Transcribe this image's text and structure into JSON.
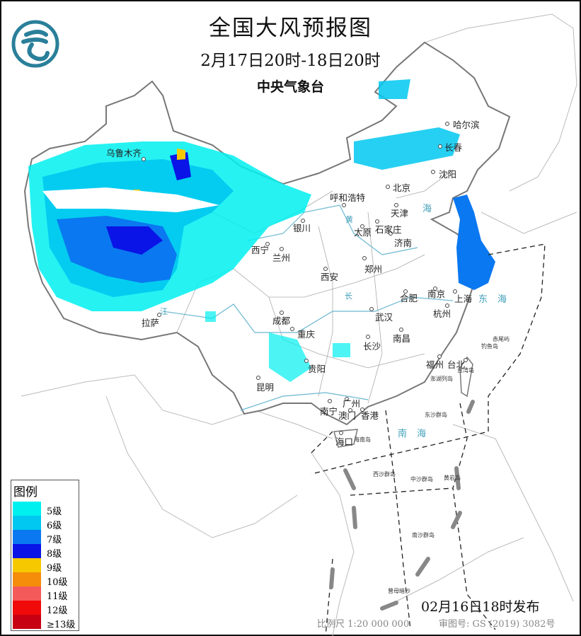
{
  "header": {
    "title": "全国大风预报图",
    "period": "2月17日20时-18日20时",
    "issuer": "中央气象台",
    "logo_icon": "cma-logo-icon"
  },
  "cities": {
    "urumqi": "乌鲁木齐",
    "harbin": "哈尔滨",
    "changchun": "长春",
    "shenyang": "沈阳",
    "beijing": "北京",
    "tianjin": "天津",
    "hohhot": "呼和浩特",
    "yinchuan": "银川",
    "taiyuan": "太原",
    "shijiazhuang": "石家庄",
    "jinan": "济南",
    "xining": "西宁",
    "lanzhou": "兰州",
    "zhengzhou": "郑州",
    "xian": "西安",
    "hefei": "合肥",
    "nanjing": "南京",
    "shanghai": "上海",
    "hangzhou": "杭州",
    "wuhan": "武汉",
    "chengdu": "成都",
    "chongqing": "重庆",
    "nanchang": "南昌",
    "changsha": "长沙",
    "lhasa": "拉萨",
    "guiyang": "贵阳",
    "fuzhou": "福州",
    "taipei": "台北",
    "kunming": "昆明",
    "nanning": "南宁",
    "guangzhou": "广州",
    "macau": "澳门",
    "hongkong": "香港",
    "haikou": "海口"
  },
  "islands": {
    "taiwan": "台湾岛",
    "penghu": "澎湖列岛",
    "chiweiyu": "赤尾屿",
    "diaoyudao": "钓鱼岛",
    "dongsha": "东沙群岛",
    "hainan": "海南岛",
    "xisha": "西沙群岛",
    "zhongsha": "中沙群岛",
    "huangyan": "黄岩岛",
    "nansha": "南沙群岛",
    "zengmu": "曾母暗沙"
  },
  "seas": {
    "bohai": "海",
    "donghai": "东海",
    "nanhai": "南海",
    "huanghe": "黄",
    "changjiang": "长",
    "jiang": "江"
  },
  "legend": {
    "title": "图例",
    "items": [
      {
        "label": "5级",
        "color": "#00f0f0"
      },
      {
        "label": "6级",
        "color": "#00c8f0"
      },
      {
        "label": "7级",
        "color": "#0a78f0"
      },
      {
        "label": "8级",
        "color": "#0a14e6"
      },
      {
        "label": "9级",
        "color": "#f5c800"
      },
      {
        "label": "10级",
        "color": "#f58c0a"
      },
      {
        "label": "11级",
        "color": "#f55a5a"
      },
      {
        "label": "12级",
        "color": "#f00a0a"
      },
      {
        "label": "≥13级",
        "color": "#c80014"
      }
    ]
  },
  "footer": {
    "issued": "02月16日18时发布",
    "scale": "比例尺 1:20 000 000",
    "review_no": "审图号: GS (2019) 3082号"
  }
}
